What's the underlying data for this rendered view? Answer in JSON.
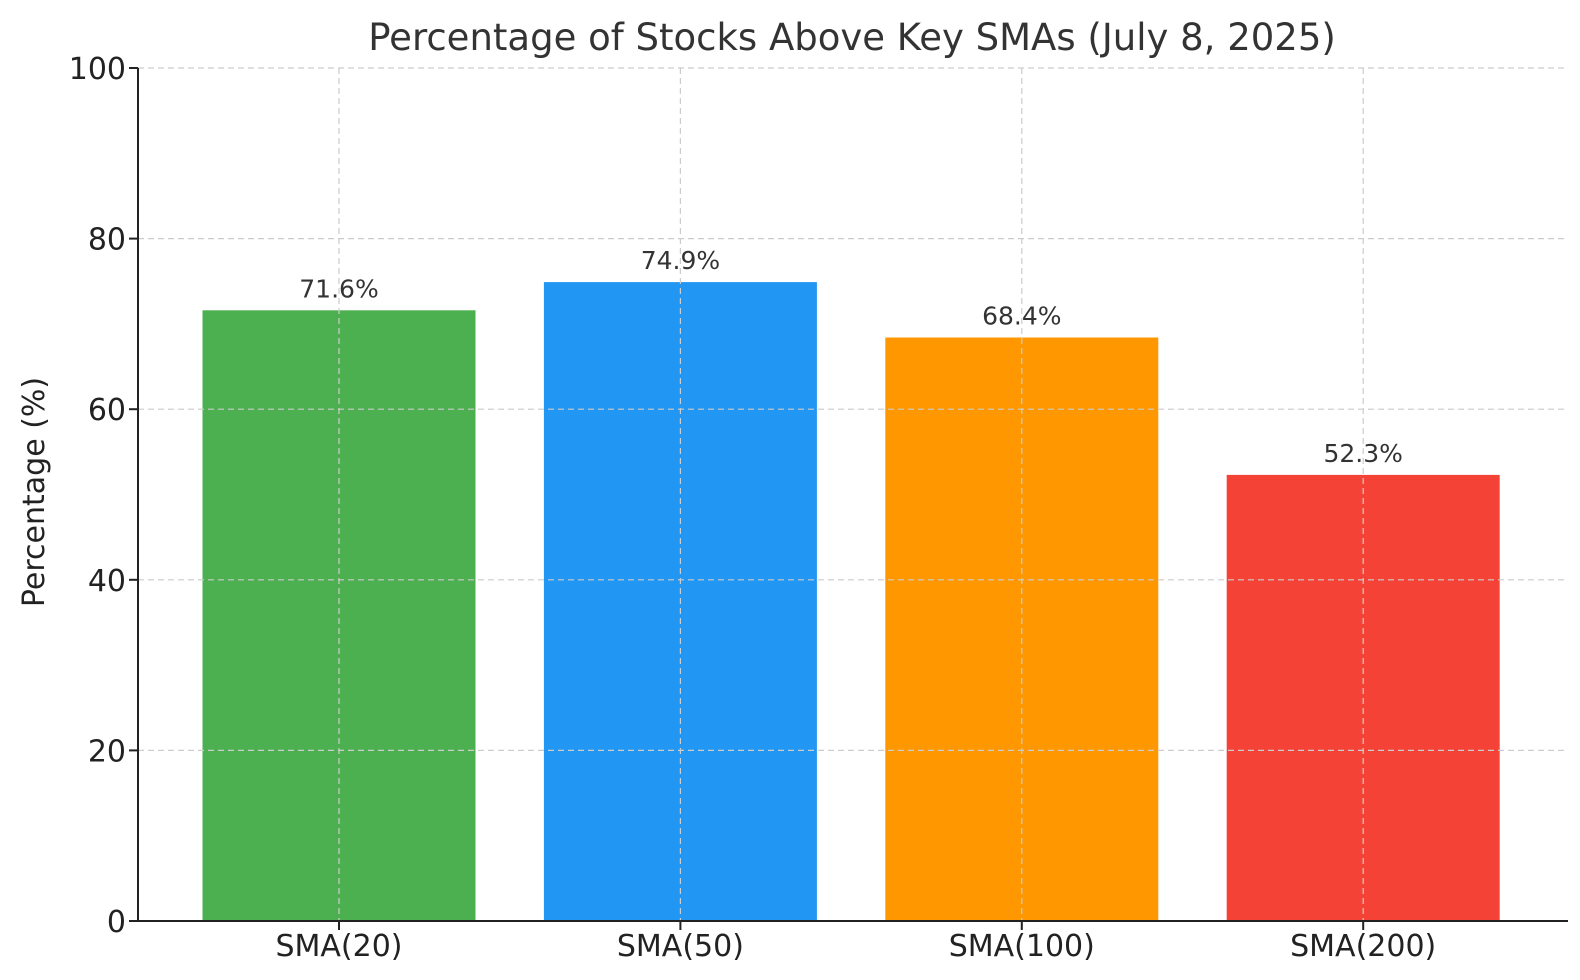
{
  "chart_data": {
    "type": "bar",
    "title": "Percentage of Stocks Above Key SMAs (July 8, 2025)",
    "xlabel": "",
    "ylabel": "Percentage (%)",
    "categories": [
      "SMA(20)",
      "SMA(50)",
      "SMA(100)",
      "SMA(200)"
    ],
    "values": [
      71.6,
      74.9,
      68.4,
      52.3
    ],
    "value_labels": [
      "71.6%",
      "74.9%",
      "68.4%",
      "52.3%"
    ],
    "colors": [
      "#4caf50",
      "#2196f3",
      "#ff9800",
      "#f44336"
    ],
    "ylim": [
      0,
      100
    ],
    "yticks": [
      0,
      20,
      40,
      60,
      80,
      100
    ],
    "grid": true
  }
}
